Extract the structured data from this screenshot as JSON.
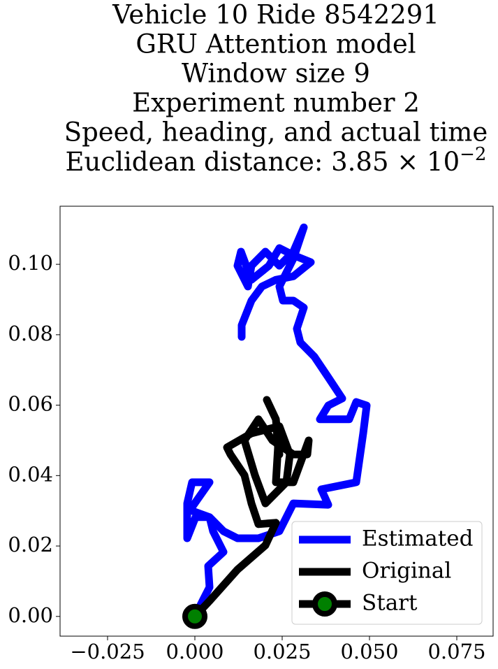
{
  "chart_data": {
    "type": "line",
    "title": [
      "Vehicle 10 Ride 8542291",
      "GRU Attention model",
      "Window size 9",
      "Experiment number 2",
      "Speed, heading, and actual time",
      "Euclidean distance: 3.85 × 10"
    ],
    "title_exponent": "−2",
    "xlim": [
      -0.0386,
      0.0854
    ],
    "ylim": [
      -0.0056,
      0.1165
    ],
    "xticks": [
      {
        "value": -0.025,
        "label": "−0.025"
      },
      {
        "value": 0,
        "label": "0.000"
      },
      {
        "value": 0.025,
        "label": "0.025"
      },
      {
        "value": 0.05,
        "label": "0.050"
      },
      {
        "value": 0.075,
        "label": "0.075"
      }
    ],
    "yticks": [
      {
        "value": 0,
        "label": "0.00"
      },
      {
        "value": 0.02,
        "label": "0.02"
      },
      {
        "value": 0.04,
        "label": "0.04"
      },
      {
        "value": 0.06,
        "label": "0.06"
      },
      {
        "value": 0.08,
        "label": "0.08"
      },
      {
        "value": 0.1,
        "label": "0.10"
      }
    ],
    "legend": "lower right",
    "series": [
      {
        "name": "Estimated",
        "color": "#0000ff",
        "x": [
          0,
          0.0022,
          0.0042,
          0.0038,
          0.0082,
          0.0052,
          0.0042,
          0.0002,
          -0.0022,
          -0.0022,
          -0.0008,
          0.0042,
          -0.0014,
          0.0042,
          0.0082,
          0.0122,
          0.0182,
          0.0242,
          0.0282,
          0.0382,
          0.0362,
          0.0462,
          0.0482,
          0.0492,
          0.0462,
          0.0442,
          0.0402,
          0.0358,
          0.0382,
          0.0422,
          0.0382,
          0.0342,
          0.0302,
          0.0292,
          0.0312,
          0.0282,
          0.0252,
          0.0242,
          0.0282,
          0.0312,
          0.0282,
          0.0242,
          0.0202,
          0.0162,
          0.0152,
          0.0122,
          0.0132,
          0.0162,
          0.0212,
          0.0242,
          0.0282,
          0.0332,
          0.0282,
          0.0232,
          0.0192,
          0.0162,
          0.0134,
          0.0134
        ],
        "y": [
          0,
          0.0044,
          0.0083,
          0.0143,
          0.0183,
          0.0242,
          0.0282,
          0.0282,
          0.0222,
          0.0321,
          0.0381,
          0.0381,
          0.0302,
          0.0282,
          0.0242,
          0.0222,
          0.0222,
          0.0242,
          0.0321,
          0.0317,
          0.0361,
          0.0381,
          0.052,
          0.0599,
          0.0609,
          0.056,
          0.056,
          0.056,
          0.0599,
          0.0619,
          0.0679,
          0.0738,
          0.0778,
          0.0817,
          0.0877,
          0.0897,
          0.0897,
          0.0937,
          0.1016,
          0.1105,
          0.1036,
          0.0996,
          0.1036,
          0.0996,
          0.0937,
          0.0996,
          0.1036,
          0.0956,
          0.0996,
          0.1046,
          0.1026,
          0.1006,
          0.0966,
          0.0956,
          0.0937,
          0.0897,
          0.0827,
          0.0794
        ]
      },
      {
        "name": "Original",
        "color": "#000000",
        "x": [
          0,
          0.0042,
          0.0122,
          0.0202,
          0.0232,
          0.0182,
          0.0162,
          0.0142,
          0.0102,
          0.0092,
          0.0162,
          0.0242,
          0.0272,
          0.0262,
          0.0202,
          0.0172,
          0.0142,
          0.0182,
          0.0222,
          0.0282,
          0.0322,
          0.0326,
          0.0282,
          0.0232,
          0.0238,
          0.0232,
          0.0206,
          0.0232,
          0.0242
        ],
        "y": [
          0,
          0.0044,
          0.0133,
          0.0202,
          0.0266,
          0.0262,
          0.0321,
          0.0401,
          0.046,
          0.048,
          0.052,
          0.054,
          0.046,
          0.0381,
          0.0321,
          0.0401,
          0.05,
          0.056,
          0.05,
          0.046,
          0.046,
          0.05,
          0.0381,
          0.0381,
          0.048,
          0.056,
          0.0615,
          0.056,
          0.046
        ]
      },
      {
        "name": "Start",
        "color": "#000000",
        "marker_color": "#008000",
        "x": [
          0
        ],
        "y": [
          0
        ]
      }
    ]
  }
}
